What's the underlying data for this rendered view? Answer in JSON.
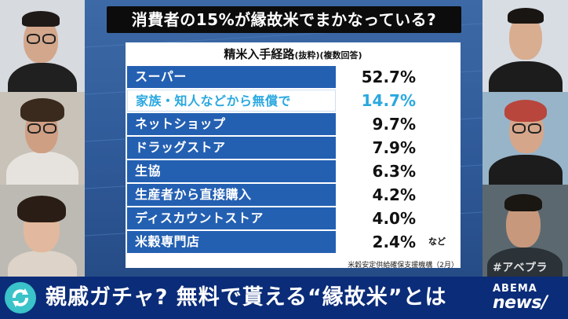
{
  "headline": "消費者の15%が縁故米でまかなっている?",
  "table": {
    "title_main": "精米入手経路",
    "title_sub1": "(抜粋)",
    "title_sub2": "(複数回答)",
    "rows": [
      {
        "label": "スーパー",
        "value": "52.7%"
      },
      {
        "label": "家族・知人などから無償で",
        "value": "14.7%"
      },
      {
        "label": "ネットショップ",
        "value": "9.7%"
      },
      {
        "label": "ドラッグストア",
        "value": "7.9%"
      },
      {
        "label": "生協",
        "value": "6.3%"
      },
      {
        "label": "生産者から直接購入",
        "value": "4.2%"
      },
      {
        "label": "ディスカウントストア",
        "value": "4.0%"
      },
      {
        "label": "米穀専門店",
        "value": "2.4%"
      }
    ],
    "etc": "など",
    "source": "米穀安定供給確保支援機構（2月）"
  },
  "caption": "親戚ガチャ? 無料で貰える“縁故米”とは",
  "brand": {
    "top": "ABEMA",
    "bottom": "news/"
  },
  "hashtag": "#アベプラ",
  "colors": {
    "accent_blue": "#2460b2",
    "highlight": "#2aa8e0",
    "bar": "#0b2c78"
  }
}
